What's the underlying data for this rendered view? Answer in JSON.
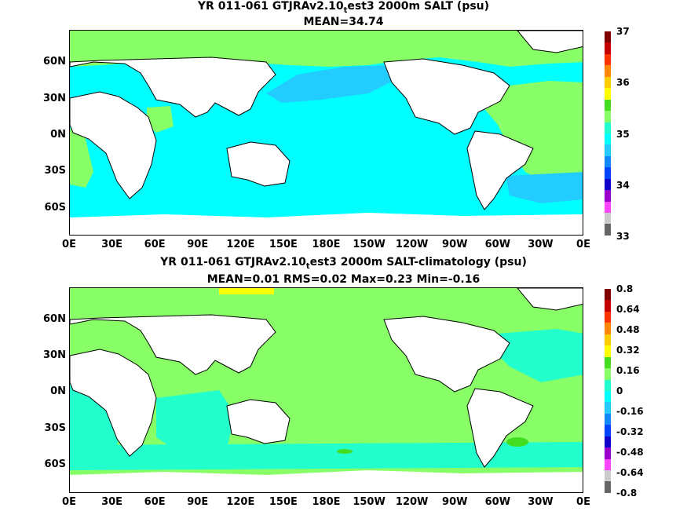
{
  "panel1": {
    "title": "YR 011-061 GTJRAv2.10",
    "title_sub": "t",
    "title_rest": "est3 2000m SALT (psu)",
    "subtitle": "MEAN=34.74",
    "colorbar_labels": [
      "37",
      "36",
      "35",
      "34",
      "33"
    ],
    "colorbar_colors": [
      "#7f0000",
      "#c40000",
      "#ff3300",
      "#ff8800",
      "#ffcc00",
      "#ffff00",
      "#44dd22",
      "#88ff66",
      "#22ffcc",
      "#00ffff",
      "#22ccff",
      "#1188ff",
      "#0044ff",
      "#1100cc",
      "#9900cc",
      "#ff44ff",
      "#cccccc",
      "#666666"
    ],
    "ocean_color": "#00ffff",
    "accent_colors": [
      "#88ff66",
      "#22ccff"
    ]
  },
  "panel2": {
    "title": "YR 011-061 GTJRAv2.10",
    "title_sub": "t",
    "title_rest": "est3 2000m SALT-climatology (psu)",
    "subtitle": "MEAN=0.01   RMS=0.02   Max=0.23   Min=-0.16",
    "colorbar_labels": [
      "0.8",
      "0.64",
      "0.48",
      "0.32",
      "0.16",
      "0",
      "-0.16",
      "-0.32",
      "-0.48",
      "-0.64",
      "-0.8"
    ],
    "colorbar_colors": [
      "#7f0000",
      "#c40000",
      "#ff3300",
      "#ff8800",
      "#ffcc00",
      "#ffff00",
      "#44dd22",
      "#88ff66",
      "#22ffcc",
      "#00ffff",
      "#22ccff",
      "#1188ff",
      "#0044ff",
      "#1100cc",
      "#9900cc",
      "#ff44ff",
      "#cccccc",
      "#666666"
    ],
    "ocean_color": "#88ff66",
    "accent_colors": [
      "#22ffcc",
      "#44dd22"
    ]
  },
  "lat_labels": [
    "60N",
    "30N",
    "0N",
    "30S",
    "60S"
  ],
  "lon_labels": [
    "0E",
    "30E",
    "60E",
    "90E",
    "120E",
    "150E",
    "180E",
    "150W",
    "120W",
    "90W",
    "60W",
    "30W",
    "0E"
  ]
}
